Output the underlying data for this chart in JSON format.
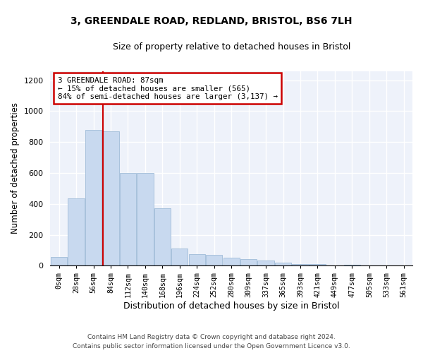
{
  "title_line1": "3, GREENDALE ROAD, REDLAND, BRISTOL, BS6 7LH",
  "title_line2": "Size of property relative to detached houses in Bristol",
  "xlabel": "Distribution of detached houses by size in Bristol",
  "ylabel": "Number of detached properties",
  "bar_color": "#c8d9ef",
  "bar_edge_color": "#a0bcd8",
  "background_color": "#eef2fa",
  "annotation_box_color": "#cc0000",
  "annotation_text": "3 GREENDALE ROAD: 87sqm\n← 15% of detached houses are smaller (565)\n84% of semi-detached houses are larger (3,137) →",
  "property_line_color": "#cc0000",
  "categories": [
    "0sqm",
    "28sqm",
    "56sqm",
    "84sqm",
    "112sqm",
    "140sqm",
    "168sqm",
    "196sqm",
    "224sqm",
    "252sqm",
    "280sqm",
    "309sqm",
    "337sqm",
    "365sqm",
    "393sqm",
    "421sqm",
    "449sqm",
    "477sqm",
    "505sqm",
    "533sqm",
    "561sqm"
  ],
  "bar_heights": [
    55,
    435,
    880,
    870,
    600,
    600,
    370,
    110,
    75,
    70,
    50,
    45,
    35,
    20,
    10,
    10,
    2,
    5,
    1,
    0,
    1
  ],
  "ylim": [
    0,
    1260
  ],
  "yticks": [
    0,
    200,
    400,
    600,
    800,
    1000,
    1200
  ],
  "footer_line1": "Contains HM Land Registry data © Crown copyright and database right 2024.",
  "footer_line2": "Contains public sector information licensed under the Open Government Licence v3.0."
}
